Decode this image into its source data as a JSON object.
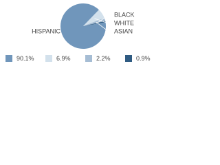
{
  "chart_data": {
    "type": "pie",
    "categories": [
      "HISPANIC",
      "WHITE",
      "ASIAN",
      "BLACK"
    ],
    "values": [
      90.1,
      6.9,
      2.2,
      0.9
    ],
    "value_labels": [
      "90.1%",
      "6.9%",
      "2.2%",
      "0.9%"
    ],
    "colors": [
      "#7096bb",
      "#d3e1ec",
      "#a6bdd4",
      "#2f5b82"
    ]
  }
}
